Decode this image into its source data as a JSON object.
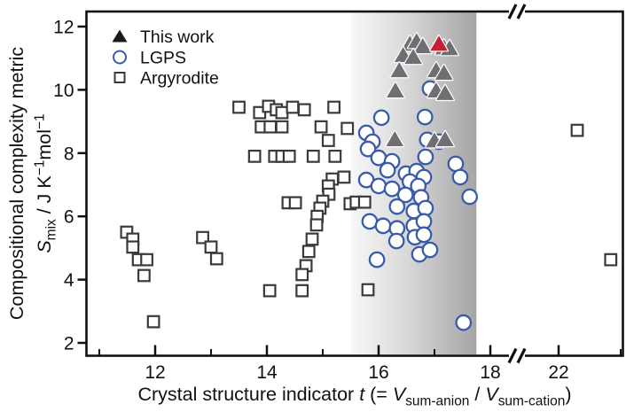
{
  "chart_data": {
    "type": "scatter",
    "x_axis": {
      "label_segments": [
        {
          "text": "Crystal structure indicator "
        },
        {
          "text": "t",
          "italic": true
        },
        {
          "text": " (= "
        },
        {
          "text": "V",
          "italic": true
        },
        {
          "text": "sum-anion",
          "sub": true
        },
        {
          "text": " / "
        },
        {
          "text": "V",
          "italic": true
        },
        {
          "text": "sum-cation",
          "sub": true
        },
        {
          "text": ")"
        }
      ],
      "major_ticks": [
        12,
        14,
        16,
        18,
        22
      ],
      "minor_ticks": [
        11,
        13,
        15,
        17,
        23
      ],
      "break_after": 18.5,
      "break_resume": 21.36,
      "range": [
        10.76,
        23.04
      ]
    },
    "y_axis": {
      "label": "Compositional complexity metric",
      "units_segments": [
        {
          "text": "S",
          "italic": true
        },
        {
          "text": "mix",
          "sub": true
        },
        {
          "text": " / J K"
        },
        {
          "text": "−1",
          "sup": true
        },
        {
          "text": "mol"
        },
        {
          "text": "−1",
          "sup": true
        }
      ],
      "major_ticks": [
        2,
        4,
        6,
        8,
        10,
        12
      ],
      "range": [
        1.6,
        12.5
      ]
    },
    "highlight_band": {
      "x_from": 15.5,
      "x_to": 17.75,
      "gradient_stops": [
        {
          "offset": "0%",
          "color": "#f8f8f8"
        },
        {
          "offset": "40%",
          "color": "#dcdcdc"
        },
        {
          "offset": "100%",
          "color": "#a5a5a5"
        }
      ]
    },
    "legend": {
      "items": [
        {
          "label": "This work",
          "marker": "triangle-filled",
          "color": "#1a1a1a"
        },
        {
          "label": "LGPS",
          "marker": "circle-open",
          "color": "#3a5ca8"
        },
        {
          "label": "Argyrodite",
          "marker": "square-open",
          "color": "#3a3a3a"
        }
      ]
    },
    "series": [
      {
        "name": "Argyrodite",
        "marker": "square",
        "fill": "#ffffff",
        "stroke": "#3a3a3a",
        "points": [
          [
            11.49,
            5.5
          ],
          [
            11.6,
            5.28
          ],
          [
            11.6,
            5.03
          ],
          [
            11.7,
            4.63
          ],
          [
            11.85,
            4.63
          ],
          [
            11.8,
            4.13
          ],
          [
            11.97,
            2.67
          ],
          [
            12.85,
            5.33
          ],
          [
            13.0,
            5.03
          ],
          [
            13.1,
            4.66
          ],
          [
            13.5,
            9.45
          ],
          [
            13.87,
            9.28
          ],
          [
            14.03,
            9.48
          ],
          [
            14.17,
            9.37
          ],
          [
            14.27,
            9.28
          ],
          [
            14.46,
            9.45
          ],
          [
            14.67,
            9.37
          ],
          [
            15.2,
            9.45
          ],
          [
            13.9,
            8.83
          ],
          [
            14.06,
            8.83
          ],
          [
            14.27,
            8.83
          ],
          [
            14.97,
            8.83
          ],
          [
            15.44,
            8.78
          ],
          [
            15.1,
            8.4
          ],
          [
            13.78,
            7.9
          ],
          [
            14.14,
            7.9
          ],
          [
            14.27,
            7.9
          ],
          [
            14.4,
            7.9
          ],
          [
            14.83,
            7.9
          ],
          [
            15.22,
            7.9
          ],
          [
            15.17,
            7.18
          ],
          [
            15.38,
            7.24
          ],
          [
            15.1,
            6.96
          ],
          [
            15.11,
            6.7
          ],
          [
            15.0,
            6.48
          ],
          [
            14.95,
            6.26
          ],
          [
            14.9,
            6.0
          ],
          [
            14.89,
            5.73
          ],
          [
            14.81,
            5.28
          ],
          [
            14.75,
            4.89
          ],
          [
            14.7,
            4.44
          ],
          [
            14.63,
            4.16
          ],
          [
            14.05,
            3.65
          ],
          [
            14.63,
            3.65
          ],
          [
            14.38,
            6.43
          ],
          [
            14.51,
            6.43
          ],
          [
            15.49,
            6.4
          ],
          [
            15.6,
            6.45
          ],
          [
            15.75,
            6.45
          ],
          [
            15.81,
            3.68
          ],
          [
            22.3,
            8.72
          ],
          [
            22.84,
            4.63
          ]
        ]
      },
      {
        "name": "LGPS",
        "marker": "circle",
        "fill": "#ffffff",
        "stroke": "#3a5ca8",
        "points": [
          [
            16.92,
            10.04
          ],
          [
            16.05,
            9.12
          ],
          [
            16.83,
            9.14
          ],
          [
            15.78,
            8.64
          ],
          [
            15.89,
            8.36
          ],
          [
            15.81,
            8.13
          ],
          [
            16.87,
            8.42
          ],
          [
            17.08,
            8.36
          ],
          [
            16.0,
            7.85
          ],
          [
            16.24,
            7.74
          ],
          [
            16.16,
            7.46
          ],
          [
            16.84,
            7.88
          ],
          [
            17.38,
            7.66
          ],
          [
            15.78,
            7.15
          ],
          [
            16.0,
            6.96
          ],
          [
            16.24,
            6.87
          ],
          [
            16.49,
            7.35
          ],
          [
            16.68,
            7.43
          ],
          [
            16.81,
            7.24
          ],
          [
            16.56,
            7.1
          ],
          [
            16.71,
            6.96
          ],
          [
            17.46,
            7.24
          ],
          [
            16.48,
            6.68
          ],
          [
            16.76,
            6.6
          ],
          [
            16.33,
            6.31
          ],
          [
            16.63,
            6.17
          ],
          [
            16.84,
            6.26
          ],
          [
            17.63,
            6.62
          ],
          [
            15.84,
            5.84
          ],
          [
            16.08,
            5.7
          ],
          [
            16.33,
            5.62
          ],
          [
            16.63,
            5.7
          ],
          [
            16.81,
            5.84
          ],
          [
            16.32,
            5.22
          ],
          [
            16.65,
            5.34
          ],
          [
            16.81,
            5.42
          ],
          [
            16.73,
            4.8
          ],
          [
            16.92,
            4.94
          ],
          [
            15.97,
            4.63
          ],
          [
            17.52,
            2.64
          ]
        ]
      },
      {
        "name": "This work",
        "marker": "triangle",
        "fill": "#6e6e73",
        "stroke": "#ffffff",
        "points": [
          [
            16.56,
            11.44
          ],
          [
            16.68,
            11.52
          ],
          [
            16.79,
            11.36
          ],
          [
            17.17,
            11.32
          ],
          [
            17.27,
            11.3
          ],
          [
            16.44,
            11.08
          ],
          [
            16.62,
            11.02
          ],
          [
            16.37,
            10.6
          ],
          [
            17.03,
            10.6
          ],
          [
            17.17,
            10.52
          ],
          [
            16.3,
            9.96
          ],
          [
            17.03,
            9.96
          ],
          [
            17.19,
            9.88
          ],
          [
            16.29,
            8.42
          ],
          [
            17.0,
            8.38
          ],
          [
            17.19,
            8.42
          ]
        ],
        "highlight_point": {
          "point": [
            17.08,
            11.44
          ],
          "fill": "#c42032"
        }
      }
    ]
  }
}
